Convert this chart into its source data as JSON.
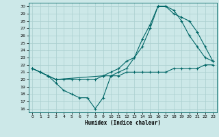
{
  "xlabel": "Humidex (Indice chaleur)",
  "bg_color": "#cce8e8",
  "grid_color": "#aacfcf",
  "line_color": "#006666",
  "xlim": [
    -0.5,
    23.5
  ],
  "ylim": [
    15.5,
    30.5
  ],
  "xticks": [
    0,
    1,
    2,
    3,
    4,
    5,
    6,
    7,
    8,
    9,
    10,
    11,
    12,
    13,
    14,
    15,
    16,
    17,
    18,
    19,
    20,
    21,
    22,
    23
  ],
  "yticks": [
    16,
    17,
    18,
    19,
    20,
    21,
    22,
    23,
    24,
    25,
    26,
    27,
    28,
    29,
    30
  ],
  "curve1_x": [
    0,
    1,
    2,
    3,
    4,
    5,
    6,
    7,
    8,
    9,
    10,
    11,
    12,
    13,
    14,
    15,
    16,
    17,
    18,
    19,
    20,
    21,
    22,
    23
  ],
  "curve1_y": [
    21.5,
    21.0,
    20.5,
    20.0,
    20.0,
    20.0,
    20.0,
    20.0,
    20.0,
    20.5,
    20.5,
    20.5,
    21.0,
    21.0,
    21.0,
    21.0,
    21.0,
    21.0,
    21.5,
    21.5,
    21.5,
    21.5,
    22.0,
    22.0
  ],
  "curve2_x": [
    0,
    1,
    2,
    3,
    4,
    5,
    6,
    7,
    8,
    9,
    10,
    11,
    12,
    13,
    14,
    15,
    16,
    17,
    18,
    19,
    20,
    21,
    22,
    23
  ],
  "curve2_y": [
    21.5,
    21.0,
    20.5,
    19.5,
    18.5,
    18.0,
    17.5,
    17.5,
    16.0,
    17.5,
    20.5,
    21.0,
    21.5,
    23.0,
    24.5,
    27.0,
    30.0,
    30.0,
    29.5,
    28.0,
    26.0,
    24.5,
    23.0,
    22.5
  ],
  "curve3_x": [
    0,
    1,
    2,
    3,
    9,
    10,
    11,
    12,
    13,
    14,
    15,
    16,
    17,
    18,
    19,
    20,
    21,
    22,
    23
  ],
  "curve3_y": [
    21.5,
    21.0,
    20.5,
    20.0,
    20.5,
    21.0,
    21.5,
    22.5,
    23.0,
    25.5,
    27.5,
    30.0,
    30.0,
    29.0,
    28.5,
    28.0,
    26.5,
    24.5,
    22.5
  ]
}
